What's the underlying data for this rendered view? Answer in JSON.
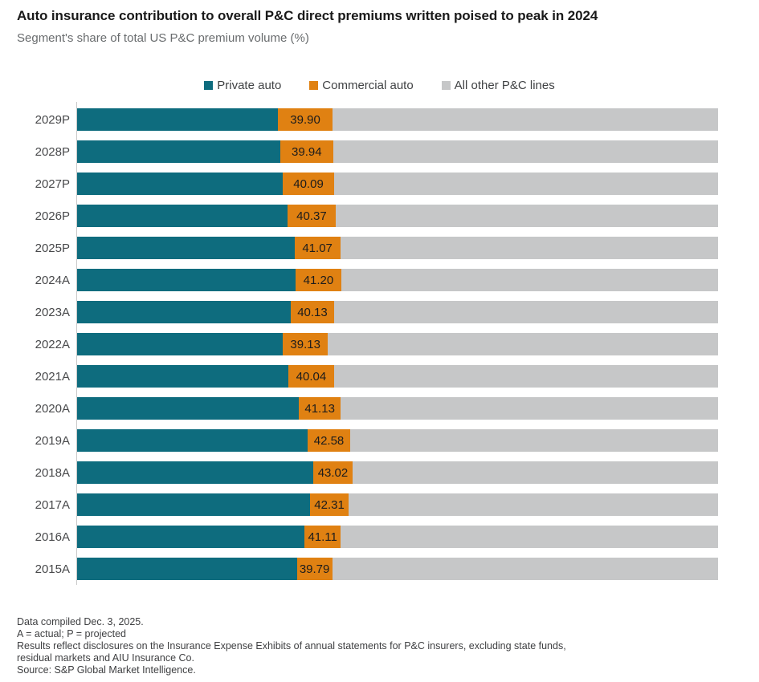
{
  "header": {
    "title": "Auto insurance contribution to overall P&C direct premiums written poised to peak in 2024",
    "subtitle": "Segment's share of total US P&C premium volume (%)"
  },
  "legend": {
    "items": [
      {
        "label": "Private auto",
        "color": "#0e6c7e"
      },
      {
        "label": "Commercial auto",
        "color": "#e08112"
      },
      {
        "label": "All other P&C lines",
        "color": "#c6c7c8"
      }
    ]
  },
  "chart_data": {
    "type": "bar",
    "orientation": "horizontal",
    "stacked": true,
    "unit": "%",
    "xlim": [
      0,
      100
    ],
    "grid": false,
    "legend_position": "top-center",
    "title": "Auto insurance contribution to overall P&C direct premiums written poised to peak in 2024",
    "subtitle": "Segment's share of total US P&C premium volume (%)",
    "categories": [
      "2029P",
      "2028P",
      "2027P",
      "2026P",
      "2025P",
      "2024A",
      "2023A",
      "2022A",
      "2021A",
      "2020A",
      "2019A",
      "2018A",
      "2017A",
      "2016A",
      "2015A"
    ],
    "series": [
      {
        "name": "Private auto",
        "color": "#0e6c7e",
        "values": [
          31.3,
          31.7,
          32.1,
          32.8,
          33.9,
          34.1,
          33.3,
          32.1,
          33.0,
          34.6,
          36.0,
          36.8,
          36.4,
          35.5,
          34.3
        ]
      },
      {
        "name": "Commercial auto",
        "color": "#e08112",
        "values": [
          8.6,
          8.24,
          7.99,
          7.57,
          7.17,
          7.1,
          6.83,
          7.03,
          7.04,
          6.53,
          6.58,
          6.22,
          5.91,
          5.61,
          5.49
        ]
      },
      {
        "name": "All other P&C lines",
        "color": "#c6c7c8",
        "values": [
          60.1,
          60.06,
          59.91,
          59.63,
          58.93,
          58.8,
          59.87,
          60.87,
          59.96,
          58.87,
          57.42,
          56.98,
          57.69,
          58.89,
          60.21
        ]
      }
    ],
    "bar_labels": {
      "description": "Total auto share (Private auto + Commercial auto) printed on each bar",
      "values": [
        "39.90",
        "39.94",
        "40.09",
        "40.37",
        "41.07",
        "41.20",
        "40.13",
        "39.13",
        "40.04",
        "41.13",
        "42.58",
        "43.02",
        "42.31",
        "41.11",
        "39.79"
      ]
    }
  },
  "footnotes": {
    "lines": [
      "Data compiled Dec. 3, 2025.",
      "A = actual; P = projected",
      "Results reflect disclosures on the Insurance Expense Exhibits of annual statements for P&C insurers, excluding state funds,",
      "residual markets and AIU Insurance Co.",
      "Source: S&P Global Market Intelligence."
    ]
  }
}
